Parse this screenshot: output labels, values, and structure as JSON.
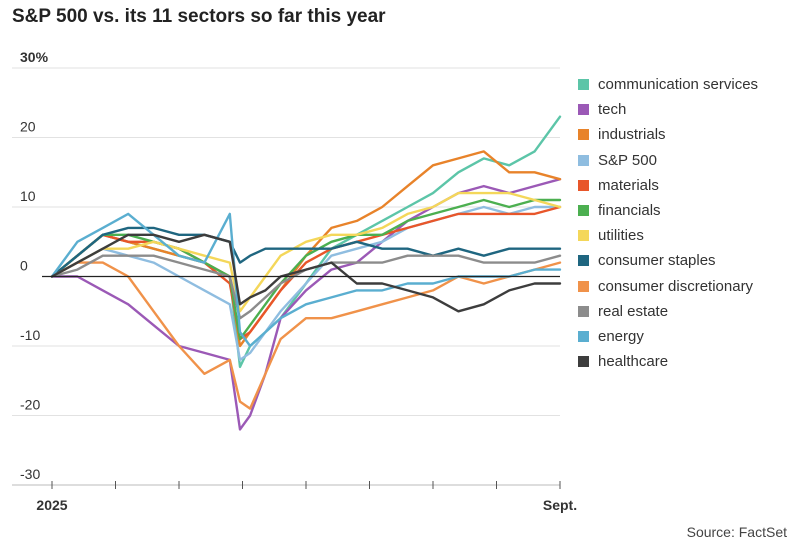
{
  "title": "S&P 500 vs. its 11 sectors so far this year",
  "source": "Source: FactSet",
  "chart_data": {
    "type": "line",
    "title": "S&P 500 vs. its 11 sectors so far this year",
    "xlabel": "",
    "ylabel": "",
    "ylim": [
      -30,
      30
    ],
    "yticks": [
      30,
      20,
      10,
      0,
      -10,
      -20,
      -30
    ],
    "ytick_labels": [
      "30%",
      "20",
      "10",
      "0",
      "-10",
      "-20",
      "-30"
    ],
    "xrange": [
      0,
      1
    ],
    "x_tick_labels": [
      {
        "x": 0,
        "label": "2025"
      },
      {
        "x": 1,
        "label": "Sept."
      }
    ],
    "x": [
      0.0,
      0.05,
      0.1,
      0.15,
      0.2,
      0.25,
      0.3,
      0.35,
      0.37,
      0.39,
      0.42,
      0.45,
      0.5,
      0.55,
      0.6,
      0.65,
      0.7,
      0.75,
      0.8,
      0.85,
      0.9,
      0.95,
      1.0
    ],
    "series": [
      {
        "name": "communication services",
        "color": "#5cc5a8",
        "values": [
          0,
          3,
          6,
          5,
          4,
          3,
          2,
          0,
          -13,
          -10,
          -8,
          -6,
          -1,
          4,
          6,
          8,
          10,
          12,
          15,
          17,
          16,
          18,
          23
        ]
      },
      {
        "name": "tech",
        "color": "#9b59b6",
        "values": [
          0,
          0,
          -2,
          -4,
          -7,
          -10,
          -11,
          -12,
          -22,
          -20,
          -14,
          -6,
          -2,
          1,
          2,
          5,
          8,
          10,
          12,
          13,
          12,
          13,
          14
        ]
      },
      {
        "name": "industrials",
        "color": "#e8832a",
        "values": [
          0,
          3,
          6,
          5,
          4,
          3,
          2,
          0,
          -10,
          -8,
          -5,
          -2,
          3,
          7,
          8,
          10,
          13,
          16,
          17,
          18,
          15,
          15,
          14
        ]
      },
      {
        "name": "S&P 500",
        "color": "#8fbde0",
        "values": [
          0,
          2,
          4,
          3,
          2,
          0,
          -2,
          -4,
          -12,
          -11,
          -8,
          -5,
          -1,
          3,
          4,
          5,
          7,
          8,
          9,
          10,
          9,
          10,
          10
        ]
      },
      {
        "name": "materials",
        "color": "#e8562a",
        "values": [
          0,
          3,
          6,
          5,
          5,
          4,
          2,
          -1,
          -9,
          -8,
          -5,
          -2,
          2,
          4,
          5,
          6,
          7,
          8,
          9,
          9,
          9,
          9,
          10
        ]
      },
      {
        "name": "financials",
        "color": "#4caf50",
        "values": [
          0,
          3,
          6,
          6,
          5,
          4,
          2,
          0,
          -9,
          -7,
          -4,
          -1,
          3,
          5,
          6,
          6,
          8,
          9,
          10,
          11,
          10,
          11,
          11
        ]
      },
      {
        "name": "utilities",
        "color": "#f4d75a",
        "values": [
          0,
          2,
          4,
          4,
          5,
          4,
          3,
          2,
          -5,
          -3,
          0,
          3,
          5,
          6,
          6,
          7,
          9,
          10,
          12,
          12,
          12,
          11,
          10
        ]
      },
      {
        "name": "consumer staples",
        "color": "#1f6680",
        "values": [
          0,
          3,
          6,
          7,
          7,
          6,
          6,
          5,
          2,
          3,
          4,
          4,
          4,
          4,
          5,
          4,
          4,
          3,
          4,
          3,
          4,
          4,
          4
        ]
      },
      {
        "name": "consumer discretionary",
        "color": "#f0924a",
        "values": [
          0,
          2,
          2,
          0,
          -5,
          -10,
          -14,
          -12,
          -18,
          -19,
          -14,
          -9,
          -6,
          -6,
          -5,
          -4,
          -3,
          -2,
          0,
          -1,
          0,
          1,
          2
        ]
      },
      {
        "name": "real estate",
        "color": "#8c8c8c",
        "values": [
          0,
          1,
          3,
          3,
          3,
          2,
          1,
          0,
          -6,
          -5,
          -3,
          -1,
          1,
          2,
          2,
          2,
          3,
          3,
          3,
          2,
          2,
          2,
          3
        ]
      },
      {
        "name": "energy",
        "color": "#5aaed0",
        "values": [
          0,
          5,
          7,
          9,
          6,
          3,
          2,
          9,
          -8,
          -10,
          -8,
          -6,
          -4,
          -3,
          -2,
          -2,
          -1,
          -1,
          0,
          0,
          0,
          1,
          1
        ]
      },
      {
        "name": "healthcare",
        "color": "#3d3d3d",
        "values": [
          0,
          2,
          4,
          6,
          6,
          5,
          6,
          5,
          -4,
          -3,
          -2,
          0,
          1,
          2,
          -1,
          -1,
          -2,
          -3,
          -5,
          -4,
          -2,
          -1,
          -1
        ]
      }
    ]
  }
}
